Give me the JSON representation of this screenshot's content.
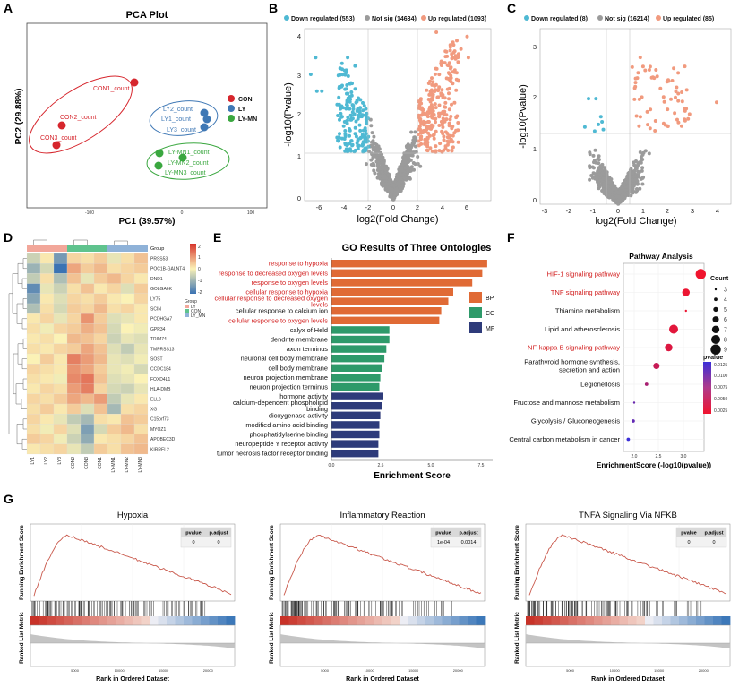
{
  "panels": {
    "A": "A",
    "B": "B",
    "C": "C",
    "D": "D",
    "E": "E",
    "F": "F",
    "G": "G"
  },
  "colors": {
    "con": "#d6262d",
    "ly": "#3f78b5",
    "mn": "#3aa73f",
    "down": "#4fb9d3",
    "up": "#f19a7e",
    "ns": "#9b9b9b",
    "bp": "#e06a35",
    "cc": "#2e9a6a",
    "mf": "#2e3b7a",
    "go_red": "#d21f1f"
  },
  "pca": {
    "title": "PCA Plot",
    "xlabel": "PC1 (39.57%)",
    "ylabel": "PC2 (29.88%)",
    "xticks": [
      "-100",
      "0",
      "100"
    ],
    "legend": [
      {
        "name": "CON",
        "color": "#d6262d"
      },
      {
        "name": "LY",
        "color": "#3f78b5"
      },
      {
        "name": "LY-MN",
        "color": "#3aa73f"
      }
    ],
    "points": [
      {
        "label": "CON1_count",
        "g": "con"
      },
      {
        "label": "CON2_count",
        "g": "con"
      },
      {
        "label": "CON3_count",
        "g": "con"
      },
      {
        "label": "LY2_count",
        "g": "ly"
      },
      {
        "label": "LY1_count",
        "g": "ly"
      },
      {
        "label": "LY3_count",
        "g": "ly"
      },
      {
        "label": "LY-MN1_count",
        "g": "mn"
      },
      {
        "label": "LY-MN2_count",
        "g": "mn"
      },
      {
        "label": "LY-MN3_count",
        "g": "mn"
      }
    ]
  },
  "volcB": {
    "legend": {
      "down": "Down regulated (553)",
      "ns": "Not sig (14634)",
      "up": "Up regulated (1093)"
    },
    "xlabel": "log2(Fold Change)",
    "ylabel": "-log10(Pvalue)",
    "xticks": [
      "-6",
      "-4",
      "-2",
      "0",
      "2",
      "4",
      "6"
    ],
    "yticks": [
      "0",
      "1",
      "2",
      "3",
      "4"
    ]
  },
  "volcC": {
    "legend": {
      "down": "Down regulated (8)",
      "ns": "Not sig (16214)",
      "up": "Up regulated (85)"
    },
    "xlabel": "log2(Fold Change)",
    "ylabel": "-log10(Pvalue)",
    "xticks": [
      "-3",
      "-2",
      "-1",
      "0",
      "1",
      "2",
      "3",
      "4"
    ],
    "yticks": [
      "0",
      "1",
      "2",
      "3"
    ]
  },
  "heatmap": {
    "genes": [
      "PRSS53",
      "POC1B-GALNT4",
      "DND1",
      "GOLGA6K",
      "LY75",
      "SCIN",
      "PCDHGA7",
      "GPR34",
      "TRIM74",
      "TMPRSS13",
      "SOST",
      "CCDC184",
      "FOXD4L1",
      "HLA-DMB",
      "ELL3",
      "XG",
      "C15orf73",
      "MYOZ1",
      "APOBEC3D",
      "KIRREL2"
    ],
    "samples": [
      "LY1",
      "LY2",
      "LY3",
      "CON2",
      "CON3",
      "CON1",
      "LY-MN1",
      "LY-MN2",
      "LY-MN3"
    ],
    "group_label": "Group",
    "scale": [
      "2",
      "1",
      "0",
      "-1",
      "-2"
    ],
    "legend_title": "Group",
    "legend": [
      {
        "name": "LY",
        "color": "#f2a79a"
      },
      {
        "name": "CON",
        "color": "#5fc38e"
      },
      {
        "name": "LY_MN",
        "color": "#8fb2d8"
      }
    ]
  },
  "go": {
    "title": "GO Results of Three Ontologies",
    "xlabel": "Enrichment Score",
    "xticks": [
      "0.0",
      "2.5",
      "5.0",
      "7.5"
    ],
    "legend": [
      {
        "name": "BP",
        "color": "#e06a35"
      },
      {
        "name": "CC",
        "color": "#2e9a6a"
      },
      {
        "name": "MF",
        "color": "#2e3b7a"
      }
    ],
    "terms": [
      {
        "lines": [
          "response to hypoxia"
        ],
        "v": 7.8,
        "cat": "bp",
        "red": true
      },
      {
        "lines": [
          "response to decreased oxygen levels"
        ],
        "v": 7.55,
        "cat": "bp",
        "red": true
      },
      {
        "lines": [
          "response to oxygen levels"
        ],
        "v": 7.05,
        "cat": "bp",
        "red": true
      },
      {
        "lines": [
          "cellular response to hypoxia"
        ],
        "v": 6.1,
        "cat": "bp",
        "red": true
      },
      {
        "lines": [
          "cellular response to decreased oxygen",
          "levels"
        ],
        "v": 5.85,
        "cat": "bp",
        "red": true
      },
      {
        "lines": [
          "cellular response to calcium ion"
        ],
        "v": 5.5,
        "cat": "bp",
        "red": false
      },
      {
        "lines": [
          "cellular response to oxygen levels"
        ],
        "v": 5.4,
        "cat": "bp",
        "red": true
      },
      {
        "lines": [
          "calyx of Held"
        ],
        "v": 2.9,
        "cat": "cc",
        "red": false
      },
      {
        "lines": [
          "dendrite membrane"
        ],
        "v": 2.9,
        "cat": "cc",
        "red": false
      },
      {
        "lines": [
          "axon terminus"
        ],
        "v": 2.75,
        "cat": "cc",
        "red": false
      },
      {
        "lines": [
          "neuronal cell body membrane"
        ],
        "v": 2.65,
        "cat": "cc",
        "red": false
      },
      {
        "lines": [
          "cell body membrane"
        ],
        "v": 2.55,
        "cat": "cc",
        "red": false
      },
      {
        "lines": [
          "neuron projection membrane"
        ],
        "v": 2.45,
        "cat": "cc",
        "red": false
      },
      {
        "lines": [
          "neuron projection terminus"
        ],
        "v": 2.4,
        "cat": "cc",
        "red": false
      },
      {
        "lines": [
          "hormone activity"
        ],
        "v": 2.6,
        "cat": "mf",
        "red": false
      },
      {
        "lines": [
          "calcium-dependent phospholipid",
          "binding"
        ],
        "v": 2.55,
        "cat": "mf",
        "red": false
      },
      {
        "lines": [
          "dioxygenase activity"
        ],
        "v": 2.45,
        "cat": "mf",
        "red": false
      },
      {
        "lines": [
          "modified amino acid binding"
        ],
        "v": 2.4,
        "cat": "mf",
        "red": false
      },
      {
        "lines": [
          "phosphatidylserine binding"
        ],
        "v": 2.4,
        "cat": "mf",
        "red": false
      },
      {
        "lines": [
          "neuropeptide Y receptor activity"
        ],
        "v": 2.35,
        "cat": "mf",
        "red": false
      },
      {
        "lines": [
          "tumor necrosis factor receptor binding"
        ],
        "v": 2.35,
        "cat": "mf",
        "red": false
      }
    ]
  },
  "pathway": {
    "title": "Pathway Analysis",
    "xlabel": "EnrichmentScore (-log10(pvalue))",
    "xticks": [
      "2.0",
      "2.5",
      "3.0"
    ],
    "count_title": "Count",
    "counts": [
      "3",
      "4",
      "5",
      "6",
      "7",
      "8",
      "9"
    ],
    "pv_title": "pvalue",
    "pv_ticks": [
      "0.0125",
      "0.0100",
      "0.0075",
      "0.0050",
      "0.0025"
    ],
    "items": [
      {
        "lines": [
          "HIF-1 signaling pathway"
        ],
        "x": 3.35,
        "count": 9,
        "p": 0.0006,
        "red": true
      },
      {
        "lines": [
          "TNF signaling pathway"
        ],
        "x": 3.05,
        "count": 7,
        "p": 0.0009,
        "red": true
      },
      {
        "lines": [
          "Thiamine metabolism"
        ],
        "x": 3.05,
        "count": 3,
        "p": 0.0009,
        "red": false
      },
      {
        "lines": [
          "Lipid and atherosclerosis"
        ],
        "x": 2.8,
        "count": 8,
        "p": 0.0016,
        "red": false
      },
      {
        "lines": [
          "NF-kappa B signaling pathway"
        ],
        "x": 2.7,
        "count": 7,
        "p": 0.002,
        "red": true
      },
      {
        "lines": [
          "Parathyroid hormone synthesis,",
          "secretion and action"
        ],
        "x": 2.45,
        "count": 6,
        "p": 0.0035,
        "red": false
      },
      {
        "lines": [
          "Legionellosis"
        ],
        "x": 2.25,
        "count": 4,
        "p": 0.0056,
        "red": false
      },
      {
        "lines": [
          "Fructose and mannose metabolism"
        ],
        "x": 2.0,
        "count": 3,
        "p": 0.01,
        "red": false
      },
      {
        "lines": [
          "Glycolysis / Gluconeogenesis"
        ],
        "x": 1.98,
        "count": 4,
        "p": 0.0105,
        "red": false
      },
      {
        "lines": [
          "Central carbon metabolism in cancer"
        ],
        "x": 1.88,
        "count": 4,
        "p": 0.0132,
        "red": false
      }
    ]
  },
  "gsea": [
    {
      "title": "Hypoxia",
      "pv_h": "pvalue",
      "pa_h": "p.adjust",
      "pv": "0",
      "pa": "0",
      "ylabel1": "Running Enrichment Score",
      "ylabel2": "Ranked List Metric",
      "xlabel": "Rank in Ordered Dataset",
      "xticks": [
        "5000",
        "10000",
        "15000",
        "20000"
      ]
    },
    {
      "title": "Inflammatory Reaction",
      "pv_h": "pvalue",
      "pa_h": "p.adjust",
      "pv": "1e-04",
      "pa": "0.0014",
      "ylabel1": "Running Enrichment Score",
      "ylabel2": "Ranked List Metric",
      "xlabel": "Rank in Ordered Dataset",
      "xticks": [
        "5000",
        "10000",
        "15000",
        "20000"
      ]
    },
    {
      "title": "TNFA Signaling Via NFKB",
      "pv_h": "pvalue",
      "pa_h": "p.adjust",
      "pv": "0",
      "pa": "0",
      "ylabel1": "Running Enrichment Score",
      "ylabel2": "Ranked List Metric",
      "xlabel": "Rank in Ordered Dataset",
      "xticks": [
        "5000",
        "10000",
        "15000",
        "20000"
      ]
    }
  ]
}
